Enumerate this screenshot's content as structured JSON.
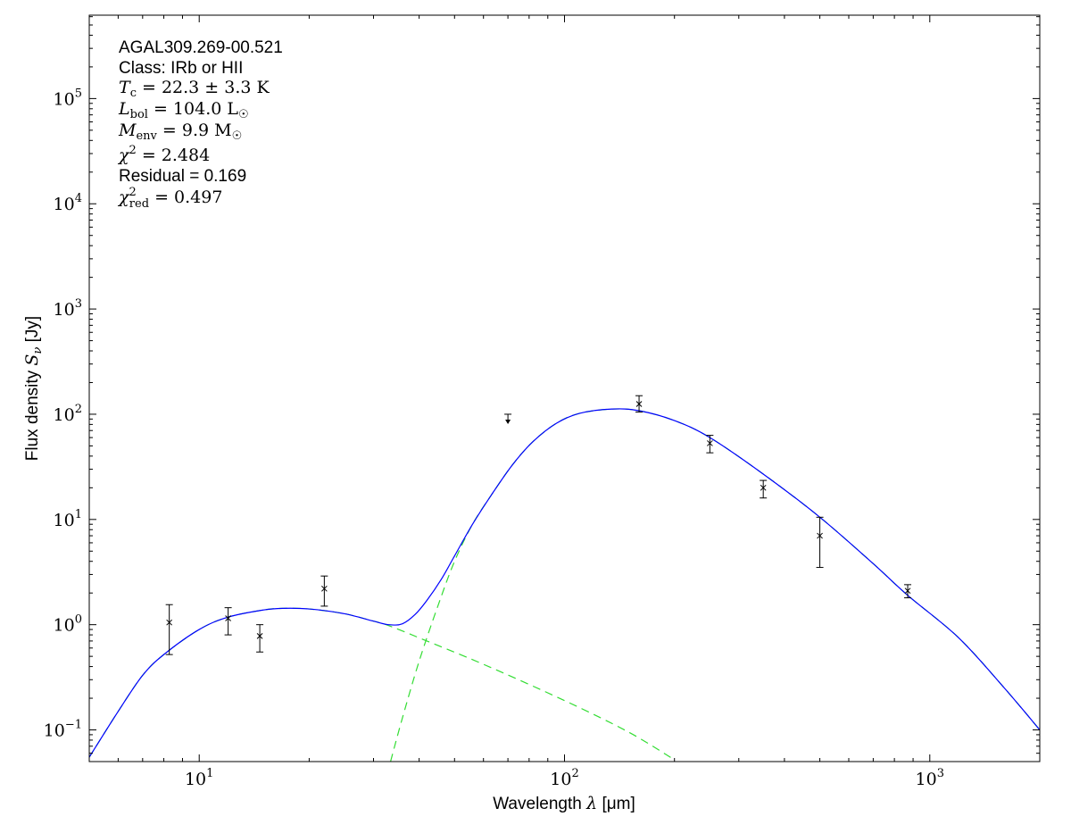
{
  "chart_data": {
    "type": "scatter",
    "xlabel": {
      "text": "Wavelength ",
      "symbol": "λ",
      "unit": " [μm]"
    },
    "ylabel": {
      "text": "Flux density ",
      "symbol": "S",
      "sub": "ν",
      "unit": " [Jy]"
    },
    "xscale": "log",
    "yscale": "log",
    "xlim": [
      5,
      2000
    ],
    "ylim": [
      0.05,
      620000
    ],
    "grid": false,
    "x_ticks": [
      {
        "base": "10",
        "exp": "1",
        "value": 10
      },
      {
        "base": "10",
        "exp": "2",
        "value": 100
      },
      {
        "base": "10",
        "exp": "3",
        "value": 1000
      }
    ],
    "y_ticks": [
      {
        "base": "10",
        "exp": "−1",
        "value": 0.1
      },
      {
        "base": "10",
        "exp": "0",
        "value": 1
      },
      {
        "base": "10",
        "exp": "1",
        "value": 10
      },
      {
        "base": "10",
        "exp": "2",
        "value": 100
      },
      {
        "base": "10",
        "exp": "3",
        "value": 1000
      },
      {
        "base": "10",
        "exp": "4",
        "value": 10000
      },
      {
        "base": "10",
        "exp": "5",
        "value": 100000
      }
    ],
    "annotation": {
      "source": "AGAL309.269-00.521",
      "class": "Class: IRb or HII",
      "tc": {
        "sym": "T",
        "sub": "c",
        "rest": " = 22.3 ± 3.3 K"
      },
      "lbol": {
        "sym": "L",
        "sub": "bol",
        "rest": " = 104.0 L",
        "tail": "☉"
      },
      "menv": {
        "sym": "M",
        "sub": "env",
        "rest": " = 9.9 M",
        "tail": "☉"
      },
      "chi2": {
        "sym": "χ",
        "sup": "2",
        "rest": " = 2.484"
      },
      "residual": "Residual = 0.169",
      "chi2red": {
        "sym": "χ",
        "sup": "2",
        "sub": "red",
        "rest": " = 0.497"
      }
    },
    "points": [
      {
        "x": 8.28,
        "y": 1.05,
        "ylo": 0.52,
        "yhi": 1.55
      },
      {
        "x": 12,
        "y": 1.15,
        "ylo": 0.8,
        "yhi": 1.45
      },
      {
        "x": 14.65,
        "y": 0.78,
        "ylo": 0.55,
        "yhi": 1.0
      },
      {
        "x": 22,
        "y": 2.2,
        "ylo": 1.5,
        "yhi": 2.9
      },
      {
        "x": 160,
        "y": 125,
        "ylo": 105,
        "yhi": 150
      },
      {
        "x": 250,
        "y": 53,
        "ylo": 43,
        "yhi": 63
      },
      {
        "x": 350,
        "y": 20,
        "ylo": 16,
        "yhi": 23.5
      },
      {
        "x": 500,
        "y": 7,
        "ylo": 3.5,
        "yhi": 10.5
      },
      {
        "x": 870,
        "y": 2.1,
        "ylo": 1.8,
        "yhi": 2.4
      }
    ],
    "upper_limits": [
      {
        "x": 70,
        "y": 100
      }
    ],
    "series": [
      {
        "style": "solid",
        "color": "#0000ff",
        "points": [
          [
            5,
            0.055
          ],
          [
            6,
            0.15
          ],
          [
            7,
            0.33
          ],
          [
            8,
            0.52
          ],
          [
            10,
            0.9
          ],
          [
            12,
            1.18
          ],
          [
            15,
            1.38
          ],
          [
            17,
            1.43
          ],
          [
            20,
            1.41
          ],
          [
            25,
            1.27
          ],
          [
            30,
            1.08
          ],
          [
            33,
            1.0
          ],
          [
            36,
            1.02
          ],
          [
            39,
            1.25
          ],
          [
            42,
            1.7
          ],
          [
            46,
            2.7
          ],
          [
            50,
            4.5
          ],
          [
            56,
            9
          ],
          [
            63,
            17
          ],
          [
            72,
            33
          ],
          [
            82,
            55
          ],
          [
            95,
            82
          ],
          [
            110,
            102
          ],
          [
            135,
            112
          ],
          [
            160,
            108
          ],
          [
            200,
            87
          ],
          [
            250,
            60
          ],
          [
            350,
            27
          ],
          [
            500,
            10.5
          ],
          [
            700,
            3.8
          ],
          [
            870,
            1.9
          ],
          [
            1200,
            0.75
          ],
          [
            1600,
            0.25
          ],
          [
            2000,
            0.1
          ]
        ]
      },
      {
        "style": "dashed",
        "color": "#33dd33",
        "points": [
          [
            5,
            0.055
          ],
          [
            6,
            0.15
          ],
          [
            7,
            0.33
          ],
          [
            8,
            0.52
          ],
          [
            10,
            0.9
          ],
          [
            12,
            1.18
          ],
          [
            15,
            1.38
          ],
          [
            17,
            1.43
          ],
          [
            20,
            1.41
          ],
          [
            25,
            1.27
          ],
          [
            30,
            1.08
          ],
          [
            33,
            0.98
          ],
          [
            40,
            0.75
          ],
          [
            60,
            0.42
          ],
          [
            100,
            0.19
          ],
          [
            150,
            0.095
          ],
          [
            200,
            0.052
          ]
        ]
      },
      {
        "style": "dashed",
        "color": "#33dd33",
        "points": [
          [
            33.4,
            0.05
          ],
          [
            36,
            0.13
          ],
          [
            40,
            0.45
          ],
          [
            45,
            1.5
          ],
          [
            50,
            4.0
          ],
          [
            56,
            9
          ],
          [
            63,
            17
          ],
          [
            72,
            33
          ],
          [
            82,
            55
          ],
          [
            95,
            82
          ],
          [
            110,
            102
          ],
          [
            135,
            112
          ],
          [
            160,
            108
          ],
          [
            200,
            87
          ],
          [
            250,
            60
          ],
          [
            350,
            27
          ],
          [
            500,
            10.5
          ],
          [
            700,
            3.8
          ],
          [
            870,
            1.9
          ],
          [
            1200,
            0.75
          ],
          [
            1600,
            0.25
          ],
          [
            2000,
            0.1
          ]
        ]
      }
    ]
  }
}
